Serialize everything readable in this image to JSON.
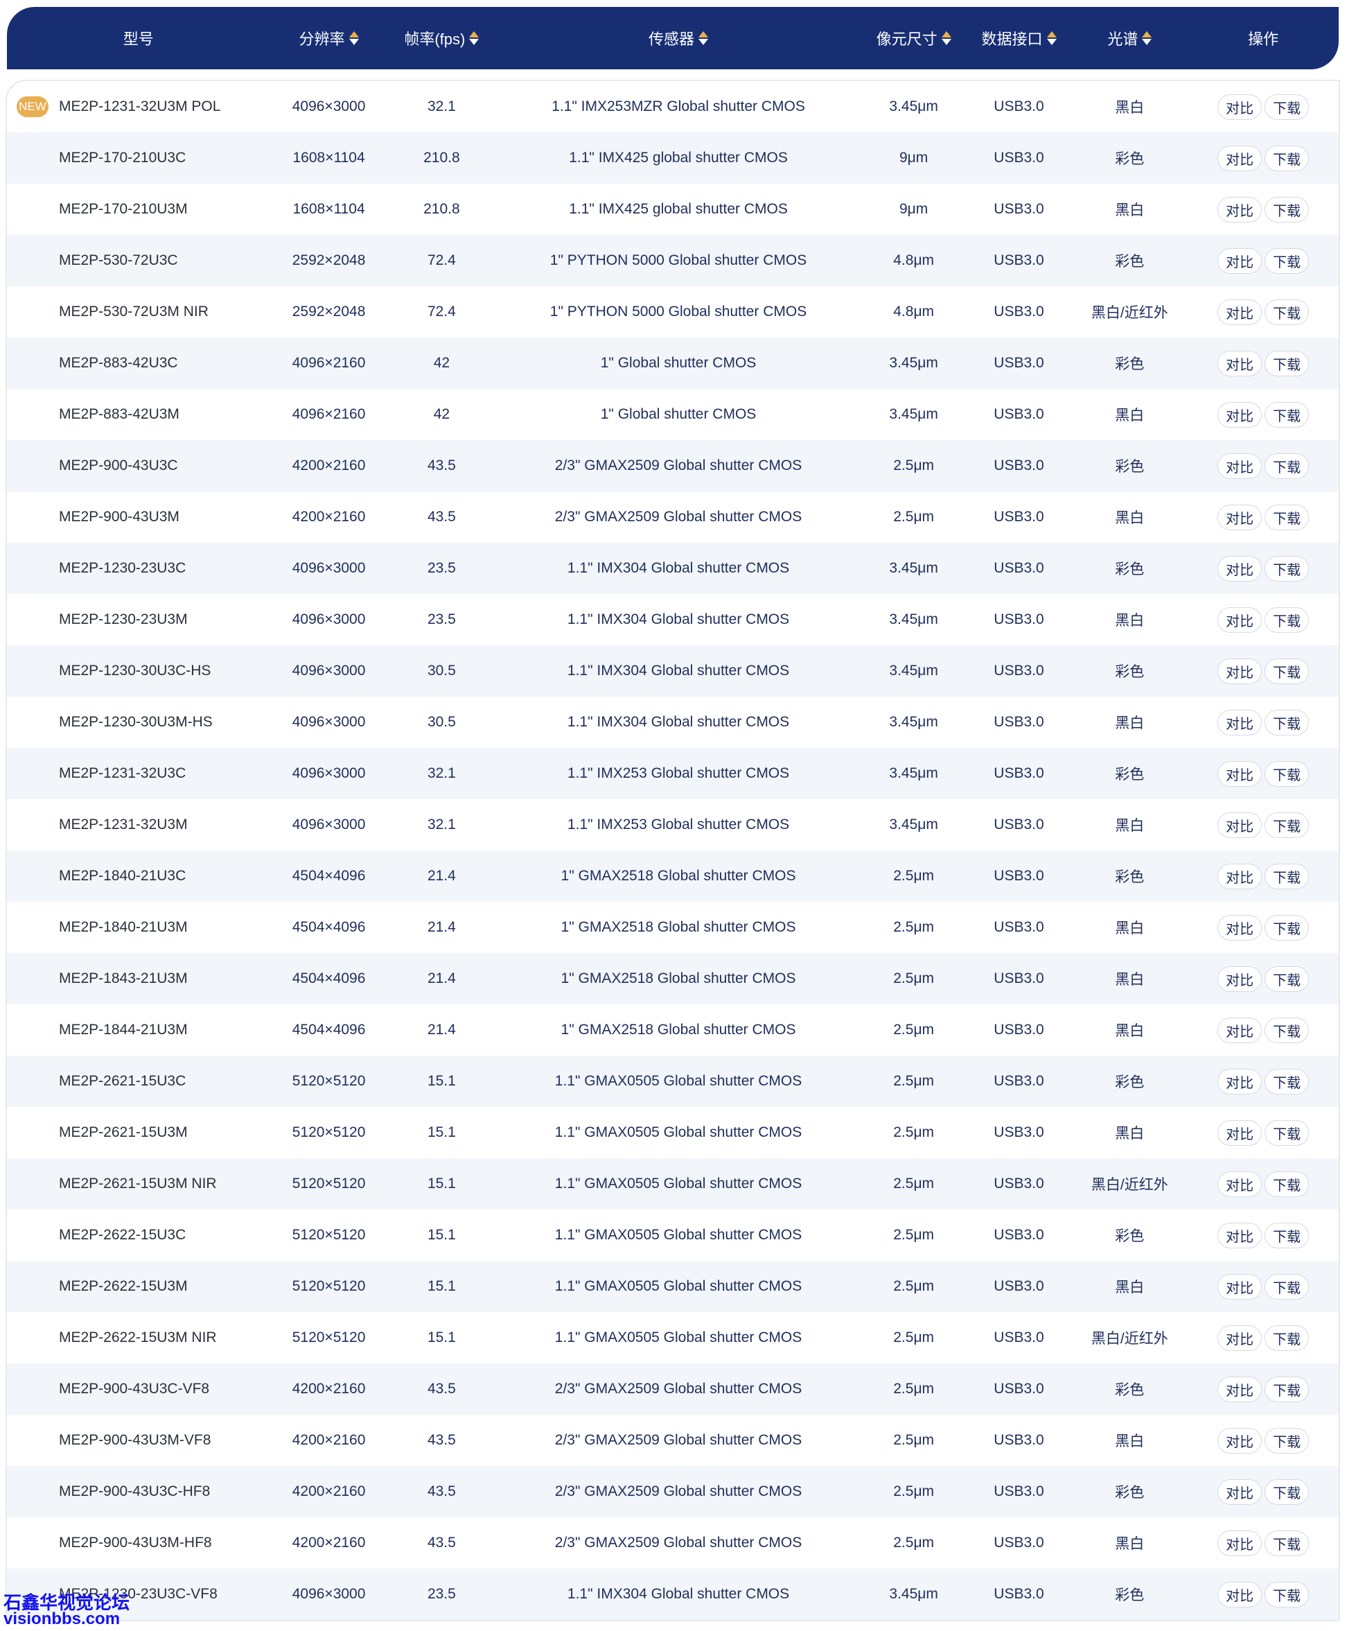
{
  "header": {
    "columns": [
      "型号",
      "分辨率",
      "帧率(fps)",
      "传感器",
      "像元尺寸",
      "数据接口",
      "光谱",
      "操作"
    ],
    "sortable": [
      false,
      true,
      true,
      true,
      true,
      true,
      true,
      false
    ]
  },
  "badge_new": "NEW",
  "actions": {
    "compare": "对比",
    "download": "下载"
  },
  "colors": {
    "header_bg": "#172e73",
    "sort_active": "#e8b04a",
    "badge": "#e8ae52",
    "stripe": "#f2f5f9"
  },
  "rows": [
    [
      "ME2P-1231-32U3M POL",
      "4096×3000",
      "32.1",
      "1.1\" IMX253MZR Global shutter CMOS",
      "3.45μm",
      "USB3.0",
      "黑白",
      true
    ],
    [
      "ME2P-170-210U3C",
      "1608×1104",
      "210.8",
      "1.1\" IMX425 global shutter CMOS",
      "9μm",
      "USB3.0",
      "彩色",
      false
    ],
    [
      "ME2P-170-210U3M",
      "1608×1104",
      "210.8",
      "1.1\" IMX425 global shutter CMOS",
      "9μm",
      "USB3.0",
      "黑白",
      false
    ],
    [
      "ME2P-530-72U3C",
      "2592×2048",
      "72.4",
      "1\" PYTHON 5000 Global shutter CMOS",
      "4.8μm",
      "USB3.0",
      "彩色",
      false
    ],
    [
      "ME2P-530-72U3M NIR",
      "2592×2048",
      "72.4",
      "1\" PYTHON 5000 Global shutter CMOS",
      "4.8μm",
      "USB3.0",
      "黑白/近红外",
      false
    ],
    [
      "ME2P-883-42U3C",
      "4096×2160",
      "42",
      "1\" Global shutter CMOS",
      "3.45μm",
      "USB3.0",
      "彩色",
      false
    ],
    [
      "ME2P-883-42U3M",
      "4096×2160",
      "42",
      "1\" Global shutter CMOS",
      "3.45μm",
      "USB3.0",
      "黑白",
      false
    ],
    [
      "ME2P-900-43U3C",
      "4200×2160",
      "43.5",
      "2/3\" GMAX2509 Global shutter CMOS",
      "2.5μm",
      "USB3.0",
      "彩色",
      false
    ],
    [
      "ME2P-900-43U3M",
      "4200×2160",
      "43.5",
      "2/3\" GMAX2509 Global shutter CMOS",
      "2.5μm",
      "USB3.0",
      "黑白",
      false
    ],
    [
      "ME2P-1230-23U3C",
      "4096×3000",
      "23.5",
      "1.1\" IMX304 Global shutter CMOS",
      "3.45μm",
      "USB3.0",
      "彩色",
      false
    ],
    [
      "ME2P-1230-23U3M",
      "4096×3000",
      "23.5",
      "1.1\" IMX304 Global shutter CMOS",
      "3.45μm",
      "USB3.0",
      "黑白",
      false
    ],
    [
      "ME2P-1230-30U3C-HS",
      "4096×3000",
      "30.5",
      "1.1\" IMX304 Global shutter CMOS",
      "3.45μm",
      "USB3.0",
      "彩色",
      false
    ],
    [
      "ME2P-1230-30U3M-HS",
      "4096×3000",
      "30.5",
      "1.1\" IMX304 Global shutter CMOS",
      "3.45μm",
      "USB3.0",
      "黑白",
      false
    ],
    [
      "ME2P-1231-32U3C",
      "4096×3000",
      "32.1",
      "1.1\" IMX253 Global shutter CMOS",
      "3.45μm",
      "USB3.0",
      "彩色",
      false
    ],
    [
      "ME2P-1231-32U3M",
      "4096×3000",
      "32.1",
      "1.1\" IMX253 Global shutter CMOS",
      "3.45μm",
      "USB3.0",
      "黑白",
      false
    ],
    [
      "ME2P-1840-21U3C",
      "4504×4096",
      "21.4",
      "1\" GMAX2518 Global shutter CMOS",
      "2.5μm",
      "USB3.0",
      "彩色",
      false
    ],
    [
      "ME2P-1840-21U3M",
      "4504×4096",
      "21.4",
      "1\" GMAX2518 Global shutter CMOS",
      "2.5μm",
      "USB3.0",
      "黑白",
      false
    ],
    [
      "ME2P-1843-21U3M",
      "4504×4096",
      "21.4",
      "1\" GMAX2518 Global shutter CMOS",
      "2.5μm",
      "USB3.0",
      "黑白",
      false
    ],
    [
      "ME2P-1844-21U3M",
      "4504×4096",
      "21.4",
      "1\" GMAX2518 Global shutter CMOS",
      "2.5μm",
      "USB3.0",
      "黑白",
      false
    ],
    [
      "ME2P-2621-15U3C",
      "5120×5120",
      "15.1",
      "1.1\" GMAX0505 Global shutter CMOS",
      "2.5μm",
      "USB3.0",
      "彩色",
      false
    ],
    [
      "ME2P-2621-15U3M",
      "5120×5120",
      "15.1",
      "1.1\" GMAX0505 Global shutter CMOS",
      "2.5μm",
      "USB3.0",
      "黑白",
      false
    ],
    [
      "ME2P-2621-15U3M NIR",
      "5120×5120",
      "15.1",
      "1.1\" GMAX0505 Global shutter CMOS",
      "2.5μm",
      "USB3.0",
      "黑白/近红外",
      false
    ],
    [
      "ME2P-2622-15U3C",
      "5120×5120",
      "15.1",
      "1.1\" GMAX0505 Global shutter CMOS",
      "2.5μm",
      "USB3.0",
      "彩色",
      false
    ],
    [
      "ME2P-2622-15U3M",
      "5120×5120",
      "15.1",
      "1.1\" GMAX0505 Global shutter CMOS",
      "2.5μm",
      "USB3.0",
      "黑白",
      false
    ],
    [
      "ME2P-2622-15U3M NIR",
      "5120×5120",
      "15.1",
      "1.1\" GMAX0505 Global shutter CMOS",
      "2.5μm",
      "USB3.0",
      "黑白/近红外",
      false
    ],
    [
      "ME2P-900-43U3C-VF8",
      "4200×2160",
      "43.5",
      "2/3\" GMAX2509 Global shutter CMOS",
      "2.5μm",
      "USB3.0",
      "彩色",
      false
    ],
    [
      "ME2P-900-43U3M-VF8",
      "4200×2160",
      "43.5",
      "2/3\" GMAX2509 Global shutter CMOS",
      "2.5μm",
      "USB3.0",
      "黑白",
      false
    ],
    [
      "ME2P-900-43U3C-HF8",
      "4200×2160",
      "43.5",
      "2/3\" GMAX2509 Global shutter CMOS",
      "2.5μm",
      "USB3.0",
      "彩色",
      false
    ],
    [
      "ME2P-900-43U3M-HF8",
      "4200×2160",
      "43.5",
      "2/3\" GMAX2509 Global shutter CMOS",
      "2.5μm",
      "USB3.0",
      "黑白",
      false
    ],
    [
      "ME2P-1230-23U3C-VF8",
      "4096×3000",
      "23.5",
      "1.1\" IMX304 Global shutter CMOS",
      "3.45μm",
      "USB3.0",
      "彩色",
      false
    ]
  ],
  "watermark": {
    "line1": "石鑫华视觉论坛",
    "line2": "visionbbs.com"
  }
}
